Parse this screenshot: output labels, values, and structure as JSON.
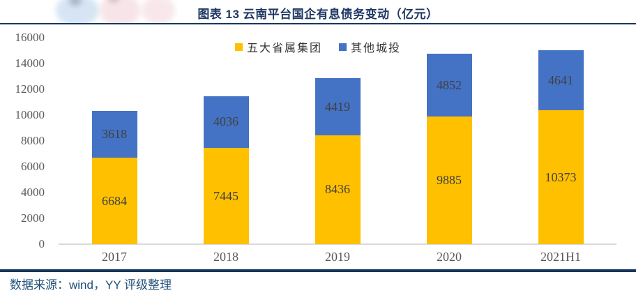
{
  "header": {
    "title": "图表 13  云南平台国企有息债务变动（亿元）"
  },
  "footer": {
    "source": "数据来源：wind，YY 评级整理"
  },
  "colors": {
    "series_yellow": "#FFC000",
    "series_blue": "#4472C4",
    "title_text": "#1F3864",
    "divider": "#17365D",
    "source_text": "#1F4E79",
    "axis_line": "#D9D9D9",
    "bar_label_text": "#404040",
    "tick_text": "#595959"
  },
  "chart_data": {
    "type": "bar",
    "stacked": true,
    "title": "图表 13  云南平台国企有息债务变动（亿元）",
    "categories": [
      "2017",
      "2018",
      "2019",
      "2020",
      "2021H1"
    ],
    "series": [
      {
        "name": "五大省属集团",
        "color": "#FFC000",
        "values": [
          6684,
          7445,
          8436,
          9885,
          10373
        ]
      },
      {
        "name": "其他城投",
        "color": "#4472C4",
        "values": [
          3618,
          4036,
          4419,
          4852,
          4641
        ]
      }
    ],
    "xlabel": "",
    "ylabel": "",
    "ylim": [
      0,
      16000
    ],
    "ytick_step": 2000,
    "grid": false,
    "legend_position": "top-center",
    "data_labels": true
  }
}
